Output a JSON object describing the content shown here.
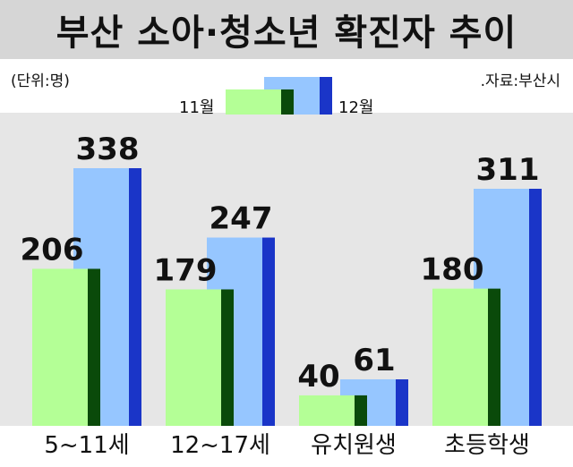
{
  "title": "부산 소아·청소년 확진자 추이",
  "unit": "(단위:명)",
  "source": ".자료:부산시",
  "chart_data": {
    "type": "bar",
    "title": "부산 소아·청소년 확진자 추이",
    "categories": [
      "5~11세",
      "12~17세",
      "유치원생",
      "초등학생"
    ],
    "series": [
      {
        "name": "11월",
        "values": [
          206,
          179,
          40,
          180
        ],
        "color": "#b4ff96",
        "shade_color": "#0a4a0a"
      },
      {
        "name": "12월",
        "values": [
          338,
          247,
          61,
          311
        ],
        "color": "#96c6ff",
        "shade_color": "#1a35c8"
      }
    ],
    "ylim": [
      0,
      338
    ],
    "grid": false,
    "legend": "top-center"
  }
}
